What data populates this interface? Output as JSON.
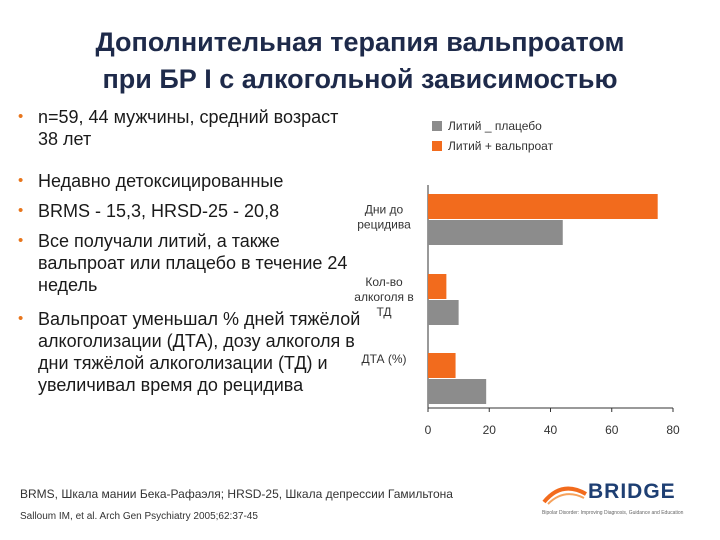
{
  "title": {
    "line1": "Дополнительная терапия вальпроатом",
    "line2": "при БР I с алкогольной зависимостью"
  },
  "bullets": [
    "n=59, 44 мужчины, средний возраст 38 лет",
    "Недавно детоксицированные",
    "BRMS - 15,3, HRSD-25 - 20,8",
    "Все получали литий, а также вальпроат или плацебо в течение 24 недель",
    "Вальпроат уменьшал % дней тяжёлой алкоголизации (ДТА), дозу алкоголя в дни тяжёлой алкоголизации (ТД) и увеличивал время до рецидива"
  ],
  "chart_data": {
    "type": "bar",
    "orientation": "horizontal",
    "categories": [
      [
        "Дни до",
        "рецидива"
      ],
      [
        "Кол-во",
        "алкоголя в",
        "ТД"
      ],
      [
        "ДТА (%)"
      ]
    ],
    "series": [
      {
        "name": "Литий + вальпроат",
        "color": "#f26b1d",
        "values": [
          75,
          6,
          9
        ]
      },
      {
        "name": "Литий _ плацебо",
        "color": "#8c8c8c",
        "values": [
          44,
          10,
          19
        ]
      }
    ],
    "legend": [
      "Литий _ плацебо",
      "Литий + вальпроат"
    ],
    "xlim": [
      0,
      80
    ],
    "xticks": [
      "0",
      "20",
      "40",
      "60",
      "80"
    ]
  },
  "footer": {
    "abbrev": "BRMS, Шкала мании Бека-Рафаэля; HRSD-25, Шкала депрессии Гамильтона",
    "citation": "Salloum IM, et al. Arch Gen Psychiatry 2005;62:37-45"
  },
  "logo": {
    "name": "BRIDGE",
    "tagline": "Bipolar Disorder: Improving Diagnosis, Guidance and Education"
  }
}
